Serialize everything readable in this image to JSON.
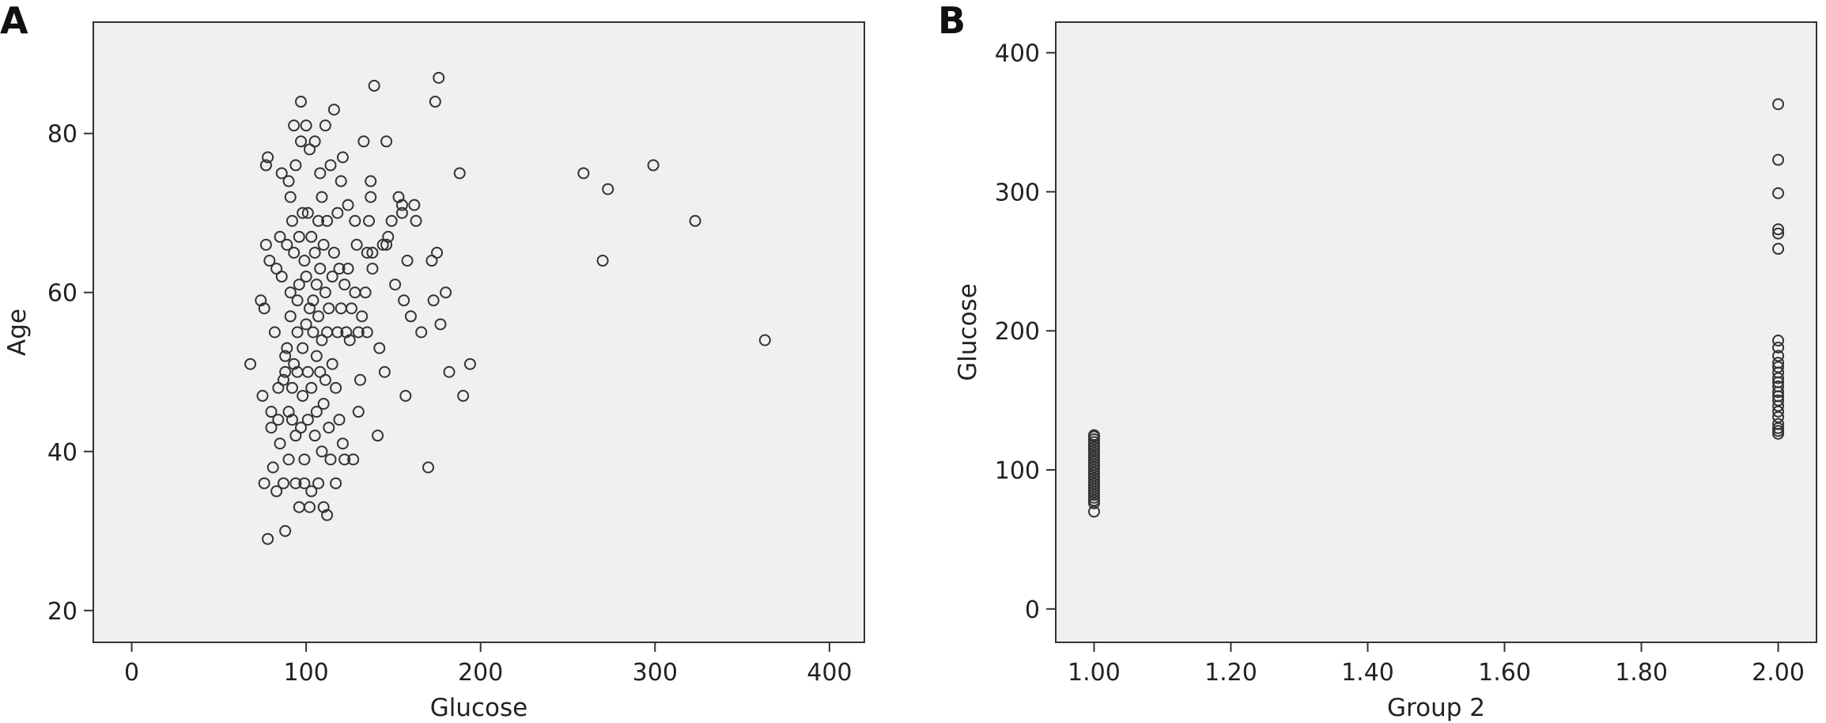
{
  "chart_data": [
    {
      "type": "scatter",
      "panel_label": "A",
      "xlabel": "Glucose",
      "ylabel": "Age",
      "xlim": [
        -22,
        420
      ],
      "ylim": [
        16,
        94
      ],
      "x_ticks": [
        0,
        100,
        200,
        300,
        400
      ],
      "x_tick_labels": [
        "0",
        "100",
        "200",
        "300",
        "400"
      ],
      "y_ticks": [
        20,
        40,
        60,
        80
      ],
      "y_tick_labels": [
        "20",
        "40",
        "60",
        "80"
      ],
      "grid": false,
      "marker": "open-circle",
      "points": [
        [
          68,
          51
        ],
        [
          74,
          59
        ],
        [
          75,
          47
        ],
        [
          76,
          58
        ],
        [
          76,
          36
        ],
        [
          77,
          66
        ],
        [
          77,
          76
        ],
        [
          78,
          29
        ],
        [
          78,
          77
        ],
        [
          79,
          64
        ],
        [
          80,
          45
        ],
        [
          80,
          43
        ],
        [
          81,
          38
        ],
        [
          82,
          55
        ],
        [
          83,
          35
        ],
        [
          83,
          63
        ],
        [
          84,
          44
        ],
        [
          84,
          48
        ],
        [
          85,
          67
        ],
        [
          85,
          41
        ],
        [
          86,
          62
        ],
        [
          86,
          75
        ],
        [
          87,
          49
        ],
        [
          87,
          36
        ],
        [
          88,
          52
        ],
        [
          88,
          50
        ],
        [
          88,
          30
        ],
        [
          89,
          66
        ],
        [
          89,
          53
        ],
        [
          90,
          45
        ],
        [
          90,
          39
        ],
        [
          90,
          74
        ],
        [
          91,
          60
        ],
        [
          91,
          57
        ],
        [
          91,
          72
        ],
        [
          92,
          48
        ],
        [
          92,
          44
        ],
        [
          92,
          69
        ],
        [
          93,
          81
        ],
        [
          93,
          65
        ],
        [
          93,
          51
        ],
        [
          94,
          42
        ],
        [
          94,
          36
        ],
        [
          94,
          76
        ],
        [
          95,
          59
        ],
        [
          95,
          55
        ],
        [
          95,
          50
        ],
        [
          96,
          33
        ],
        [
          96,
          61
        ],
        [
          96,
          67
        ],
        [
          97,
          84
        ],
        [
          97,
          43
        ],
        [
          97,
          79
        ],
        [
          98,
          47
        ],
        [
          98,
          53
        ],
        [
          98,
          70
        ],
        [
          99,
          36
        ],
        [
          99,
          64
        ],
        [
          99,
          39
        ],
        [
          100,
          56
        ],
        [
          100,
          62
        ],
        [
          100,
          81
        ],
        [
          101,
          50
        ],
        [
          101,
          44
        ],
        [
          101,
          70
        ],
        [
          102,
          33
        ],
        [
          102,
          58
        ],
        [
          102,
          78
        ],
        [
          103,
          35
        ],
        [
          103,
          67
        ],
        [
          103,
          48
        ],
        [
          104,
          55
        ],
        [
          104,
          59
        ],
        [
          105,
          42
        ],
        [
          105,
          65
        ],
        [
          105,
          79
        ],
        [
          106,
          52
        ],
        [
          106,
          61
        ],
        [
          106,
          45
        ],
        [
          107,
          69
        ],
        [
          107,
          57
        ],
        [
          107,
          36
        ],
        [
          108,
          50
        ],
        [
          108,
          63
        ],
        [
          108,
          75
        ],
        [
          109,
          40
        ],
        [
          109,
          54
        ],
        [
          109,
          72
        ],
        [
          110,
          46
        ],
        [
          110,
          66
        ],
        [
          110,
          33
        ],
        [
          111,
          49
        ],
        [
          111,
          60
        ],
        [
          111,
          81
        ],
        [
          112,
          55
        ],
        [
          112,
          69
        ],
        [
          112,
          32
        ],
        [
          113,
          43
        ],
        [
          113,
          58
        ],
        [
          114,
          76
        ],
        [
          114,
          39
        ],
        [
          115,
          62
        ],
        [
          115,
          51
        ],
        [
          116,
          83
        ],
        [
          116,
          65
        ],
        [
          117,
          48
        ],
        [
          117,
          36
        ],
        [
          118,
          70
        ],
        [
          118,
          55
        ],
        [
          119,
          44
        ],
        [
          119,
          63
        ],
        [
          120,
          74
        ],
        [
          120,
          58
        ],
        [
          121,
          41
        ],
        [
          121,
          77
        ],
        [
          122,
          61
        ],
        [
          122,
          39
        ],
        [
          123,
          55
        ],
        [
          124,
          71
        ],
        [
          124,
          63
        ],
        [
          125,
          54
        ],
        [
          126,
          58
        ],
        [
          127,
          39
        ],
        [
          128,
          69
        ],
        [
          128,
          60
        ],
        [
          129,
          66
        ],
        [
          130,
          45
        ],
        [
          130,
          55
        ],
        [
          131,
          49
        ],
        [
          132,
          57
        ],
        [
          133,
          79
        ],
        [
          134,
          60
        ],
        [
          135,
          65
        ],
        [
          135,
          55
        ],
        [
          136,
          69
        ],
        [
          137,
          72
        ],
        [
          137,
          74
        ],
        [
          138,
          65
        ],
        [
          138,
          63
        ],
        [
          139,
          86
        ],
        [
          141,
          42
        ],
        [
          142,
          53
        ],
        [
          144,
          66
        ],
        [
          145,
          50
        ],
        [
          146,
          79
        ],
        [
          146,
          66
        ],
        [
          147,
          67
        ],
        [
          149,
          69
        ],
        [
          151,
          61
        ],
        [
          153,
          72
        ],
        [
          155,
          71
        ],
        [
          155,
          70
        ],
        [
          156,
          59
        ],
        [
          157,
          47
        ],
        [
          158,
          64
        ],
        [
          160,
          57
        ],
        [
          162,
          71
        ],
        [
          163,
          69
        ],
        [
          166,
          55
        ],
        [
          170,
          38
        ],
        [
          172,
          64
        ],
        [
          173,
          59
        ],
        [
          174,
          84
        ],
        [
          175,
          65
        ],
        [
          176,
          87
        ],
        [
          177,
          56
        ],
        [
          180,
          60
        ],
        [
          182,
          50
        ],
        [
          188,
          75
        ],
        [
          190,
          47
        ],
        [
          194,
          51
        ],
        [
          259,
          75
        ],
        [
          270,
          64
        ],
        [
          273,
          73
        ],
        [
          299,
          76
        ],
        [
          323,
          69
        ],
        [
          363,
          54
        ]
      ]
    },
    {
      "type": "scatter",
      "panel_label": "B",
      "xlabel": "Group 2",
      "ylabel": "Glucose",
      "xlim": [
        0.944,
        2.056
      ],
      "ylim": [
        -24,
        422
      ],
      "x_ticks": [
        1.0,
        1.2,
        1.4,
        1.6,
        1.8,
        2.0
      ],
      "x_tick_labels": [
        "1.00",
        "1.20",
        "1.40",
        "1.60",
        "1.80",
        "2.00"
      ],
      "y_ticks": [
        0,
        100,
        200,
        300,
        400
      ],
      "y_tick_labels": [
        "0",
        "100",
        "200",
        "300",
        "400"
      ],
      "grid": false,
      "marker": "open-circle",
      "points": [
        [
          1,
          70
        ],
        [
          1,
          76
        ],
        [
          1,
          78
        ],
        [
          1,
          80
        ],
        [
          1,
          82
        ],
        [
          1,
          84
        ],
        [
          1,
          86
        ],
        [
          1,
          88
        ],
        [
          1,
          90
        ],
        [
          1,
          92
        ],
        [
          1,
          94
        ],
        [
          1,
          96
        ],
        [
          1,
          98
        ],
        [
          1,
          100
        ],
        [
          1,
          102
        ],
        [
          1,
          104
        ],
        [
          1,
          106
        ],
        [
          1,
          108
        ],
        [
          1,
          110
        ],
        [
          1,
          112
        ],
        [
          1,
          114
        ],
        [
          1,
          116
        ],
        [
          1,
          118
        ],
        [
          1,
          120
        ],
        [
          1,
          122
        ],
        [
          1,
          124
        ],
        [
          1,
          125
        ],
        [
          2,
          126
        ],
        [
          2,
          128
        ],
        [
          2,
          130
        ],
        [
          2,
          133
        ],
        [
          2,
          138
        ],
        [
          2,
          142
        ],
        [
          2,
          146
        ],
        [
          2,
          150
        ],
        [
          2,
          153
        ],
        [
          2,
          156
        ],
        [
          2,
          160
        ],
        [
          2,
          163
        ],
        [
          2,
          166
        ],
        [
          2,
          170
        ],
        [
          2,
          174
        ],
        [
          2,
          177
        ],
        [
          2,
          182
        ],
        [
          2,
          188
        ],
        [
          2,
          193
        ],
        [
          2,
          259
        ],
        [
          2,
          270
        ],
        [
          2,
          273
        ],
        [
          2,
          299
        ],
        [
          2,
          323
        ],
        [
          2,
          363
        ]
      ]
    }
  ]
}
